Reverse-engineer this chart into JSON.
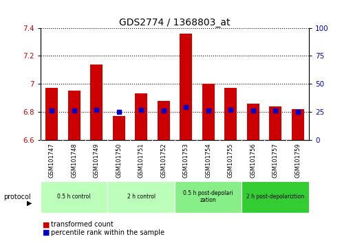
{
  "title": "GDS2774 / 1368803_at",
  "samples": [
    "GSM101747",
    "GSM101748",
    "GSM101749",
    "GSM101750",
    "GSM101751",
    "GSM101752",
    "GSM101753",
    "GSM101754",
    "GSM101755",
    "GSM101756",
    "GSM101757",
    "GSM101759"
  ],
  "transformed_count": [
    6.97,
    6.95,
    7.14,
    6.77,
    6.93,
    6.88,
    7.36,
    7.0,
    6.97,
    6.86,
    6.84,
    6.82
  ],
  "percentile_rank": [
    26,
    26,
    27,
    25,
    27,
    26,
    29,
    26,
    27,
    26,
    26,
    25
  ],
  "ylim_left": [
    6.6,
    7.4
  ],
  "ylim_right": [
    0,
    100
  ],
  "yticks_left": [
    6.6,
    6.8,
    7.0,
    7.2,
    7.4
  ],
  "yticks_right": [
    0,
    25,
    50,
    75,
    100
  ],
  "bar_color": "#cc0000",
  "dot_color": "#0000cc",
  "bar_bottom": 6.6,
  "groups": [
    {
      "label": "0.5 h control",
      "start": 0,
      "end": 3,
      "color": "#bbffbb"
    },
    {
      "label": "2 h control",
      "start": 3,
      "end": 6,
      "color": "#bbffbb"
    },
    {
      "label": "0.5 h post-depolarization",
      "start": 6,
      "end": 9,
      "color": "#88ee88"
    },
    {
      "label": "2 h post-depolariztion",
      "start": 9,
      "end": 12,
      "color": "#33cc33"
    }
  ],
  "grid_color": "#000000",
  "title_fontsize": 10,
  "tick_fontsize": 7.5,
  "label_color_left": "#cc0000",
  "label_color_right": "#0000cc",
  "sample_label_bg": "#cccccc",
  "plot_bg": "#ffffff"
}
